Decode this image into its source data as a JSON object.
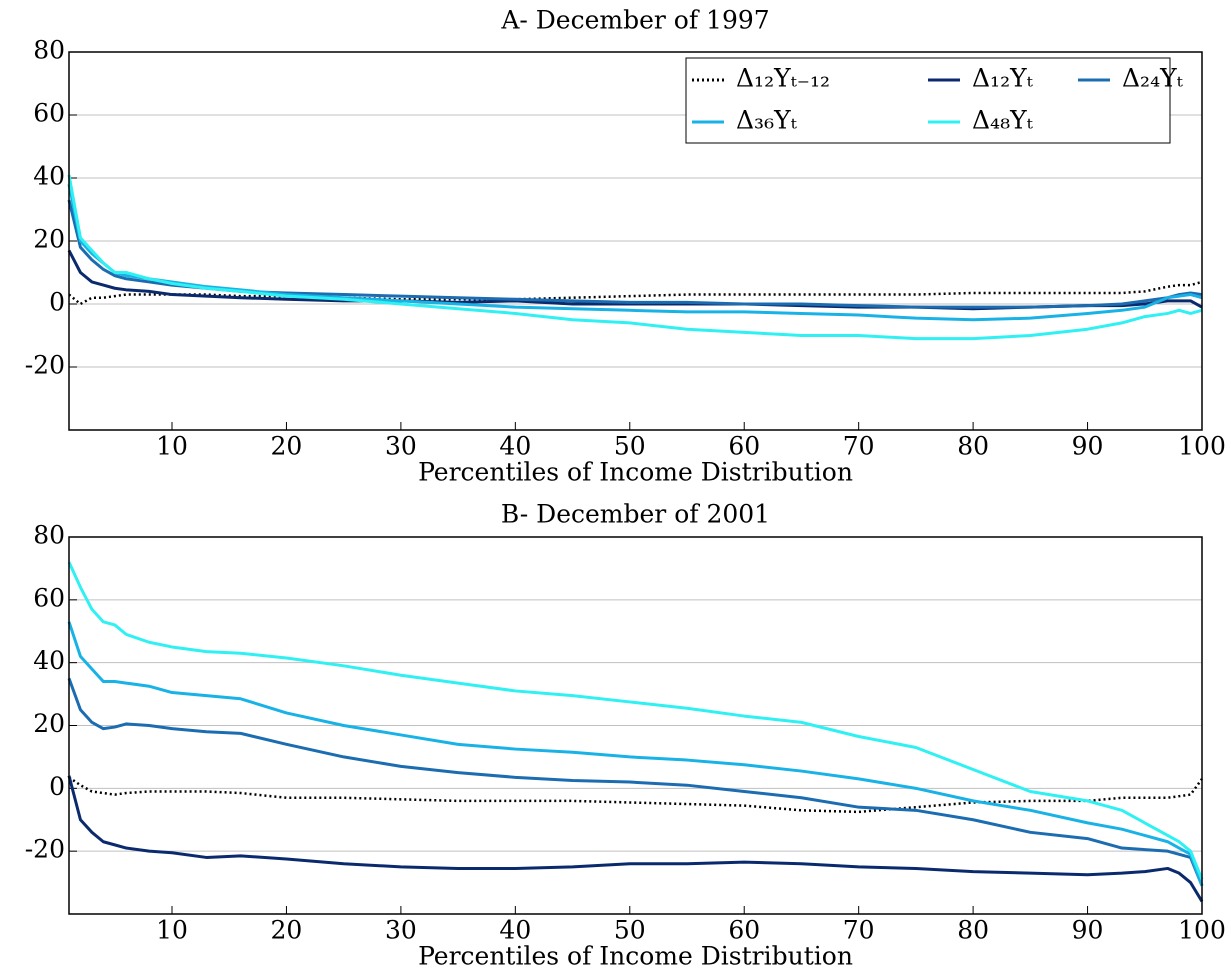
{
  "chart_data": [
    {
      "type": "line",
      "title": "A- December of 1997",
      "xlabel": "Percentiles of Income Distribution",
      "x": [
        1,
        2,
        3,
        4,
        5,
        6,
        8,
        10,
        13,
        16,
        20,
        25,
        30,
        35,
        40,
        45,
        50,
        55,
        60,
        65,
        70,
        75,
        80,
        85,
        90,
        93,
        95,
        97,
        98,
        99,
        100
      ],
      "xlim": [
        1,
        100
      ],
      "xticks": [
        10,
        20,
        30,
        40,
        50,
        60,
        70,
        80,
        90,
        100
      ],
      "ylim": [
        -40,
        80
      ],
      "yticks": [
        -20,
        0,
        20,
        40,
        60,
        80
      ],
      "grid": true,
      "legend": "upper right",
      "series": [
        {
          "name": "Δ₁₂Yₜ₋₁₂",
          "color": "#000000",
          "dash": "dotted",
          "values": [
            3,
            0,
            2,
            2,
            2.5,
            3,
            3,
            3,
            3,
            2.5,
            2.5,
            2,
            1.5,
            1.5,
            1.5,
            2,
            2.5,
            3,
            3,
            3,
            3,
            3,
            3.5,
            3.5,
            3.5,
            3.5,
            4,
            5.5,
            6,
            6,
            7
          ]
        },
        {
          "name": "Δ₁₂Yₜ",
          "color": "#0b2a6e",
          "values": [
            17,
            10,
            7,
            6,
            5,
            4.5,
            4,
            3,
            2.5,
            2,
            1.5,
            1,
            1,
            0.5,
            1,
            0,
            0,
            0,
            0,
            -0.5,
            -1,
            -1,
            -1.5,
            -1,
            -0.5,
            -0.5,
            0,
            1,
            1,
            1,
            -1
          ]
        },
        {
          "name": "Δ₂₄Yₜ",
          "color": "#1b6cb0",
          "values": [
            33,
            18,
            14,
            11,
            9,
            8,
            7,
            6,
            5,
            4,
            3.5,
            3,
            2.5,
            2,
            1.5,
            1,
            0.5,
            0.5,
            0,
            0,
            -0.5,
            -1,
            -1,
            -1,
            -0.5,
            0,
            1,
            2,
            3,
            3.5,
            3
          ]
        },
        {
          "name": "Δ₃₆Yₜ",
          "color": "#19b2e6",
          "values": [
            38,
            20,
            16,
            13,
            10,
            9,
            8,
            7,
            5.5,
            4.5,
            3,
            2,
            1,
            0,
            -1,
            -1.5,
            -2,
            -2.5,
            -2.5,
            -3,
            -3.5,
            -4.5,
            -5,
            -4.5,
            -3,
            -2,
            -1,
            2,
            2.5,
            3,
            2
          ]
        },
        {
          "name": "Δ₄₈Yₜ",
          "color": "#2ff0f2",
          "values": [
            41,
            21,
            17,
            13,
            10,
            10,
            8,
            6.5,
            5,
            4,
            2.5,
            1.5,
            0,
            -1.5,
            -3,
            -5,
            -6,
            -8,
            -9,
            -10,
            -10,
            -11,
            -11,
            -10,
            -8,
            -6,
            -4,
            -3,
            -2,
            -3,
            -2
          ]
        }
      ]
    },
    {
      "type": "line",
      "title": "B- December of 2001",
      "xlabel": "Percentiles of Income Distribution",
      "x": [
        1,
        2,
        3,
        4,
        5,
        6,
        8,
        10,
        13,
        16,
        20,
        25,
        30,
        35,
        40,
        45,
        50,
        55,
        60,
        65,
        70,
        75,
        80,
        85,
        90,
        93,
        95,
        97,
        98,
        99,
        100
      ],
      "xlim": [
        1,
        100
      ],
      "xticks": [
        10,
        20,
        30,
        40,
        50,
        60,
        70,
        80,
        90,
        100
      ],
      "ylim": [
        -40,
        80
      ],
      "yticks": [
        -20,
        0,
        20,
        40,
        60,
        80
      ],
      "grid": true,
      "series": [
        {
          "color": "#000000",
          "dash": "dotted",
          "values": [
            3.5,
            1,
            -1,
            -1.5,
            -2,
            -1.5,
            -1,
            -1,
            -1,
            -1.5,
            -3,
            -3,
            -3.5,
            -4,
            -4,
            -4,
            -4.5,
            -5,
            -5.5,
            -7,
            -7.5,
            -6,
            -4.5,
            -4,
            -4,
            -3,
            -3,
            -3,
            -2.5,
            -2,
            3
          ]
        },
        {
          "color": "#0b2a6e",
          "values": [
            4,
            -10,
            -14,
            -17,
            -18,
            -19,
            -20,
            -20.5,
            -22,
            -21.5,
            -22.5,
            -24,
            -25,
            -25.5,
            -25.5,
            -25,
            -24,
            -24,
            -23.5,
            -24,
            -25,
            -25.5,
            -26.5,
            -27,
            -27.5,
            -27,
            -26.5,
            -25.5,
            -27,
            -30,
            -36
          ]
        },
        {
          "color": "#1b6cb0",
          "values": [
            35,
            25,
            21,
            19,
            19.5,
            20.5,
            20,
            19,
            18,
            17.5,
            14,
            10,
            7,
            5,
            3.5,
            2.5,
            2,
            1,
            -1,
            -3,
            -6,
            -7,
            -10,
            -14,
            -16,
            -19,
            -19.5,
            -20,
            -21,
            -22,
            -31
          ]
        },
        {
          "color": "#19b2e6",
          "values": [
            53,
            42,
            38,
            34,
            34,
            33.5,
            32.5,
            30.5,
            29.5,
            28.5,
            24,
            20,
            17,
            14,
            12.5,
            11.5,
            10,
            9,
            7.5,
            5.5,
            3,
            0,
            -4,
            -7,
            -11,
            -13,
            -15,
            -17,
            -19,
            -21,
            -31
          ]
        },
        {
          "color": "#2ff0f2",
          "values": [
            72,
            64,
            57,
            53,
            52,
            49,
            46.5,
            45,
            43.5,
            43,
            41.5,
            39,
            36,
            33.5,
            31,
            29.5,
            27.5,
            25.5,
            23,
            21,
            16.5,
            13,
            6,
            -1,
            -4,
            -7,
            -11,
            -15,
            -17,
            -20,
            -29
          ]
        }
      ]
    }
  ]
}
